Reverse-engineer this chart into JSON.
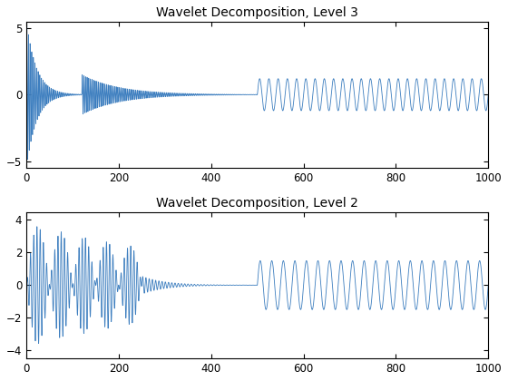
{
  "title1": "Wavelet Decomposition, Level 3",
  "title2": "Wavelet Decomposition, Level 2",
  "line_color": "#3D7EBF",
  "xlim": [
    0,
    1000
  ],
  "ylim1": [
    -5.5,
    5.5
  ],
  "ylim2": [
    -4.5,
    4.5
  ],
  "yticks1": [
    -5,
    0,
    5
  ],
  "yticks2": [
    -4,
    -2,
    0,
    2,
    4
  ],
  "xticks": [
    0,
    200,
    400,
    600,
    800,
    1000
  ],
  "background_color": "#ffffff",
  "linewidth": 0.6
}
